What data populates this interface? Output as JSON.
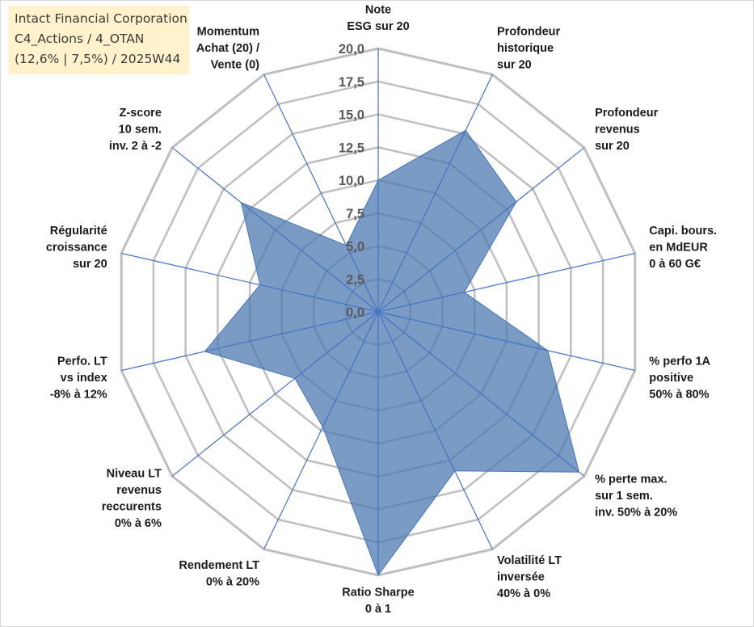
{
  "title_box": {
    "line1": "Intact Financial Corporation",
    "line2": "C4_Actions / 4_OTAN",
    "line3": "(12,6% | 7,5%) / 2025W44",
    "background": "#fff2cc"
  },
  "chart_data": {
    "type": "radar",
    "title": "Intact Financial Corporation",
    "range": [
      0,
      20
    ],
    "ticks": [
      "0,0",
      "2,5",
      "5,0",
      "7,5",
      "10,0",
      "12,5",
      "15,0",
      "17,5",
      "20,0"
    ],
    "tick_values": [
      0,
      2.5,
      5,
      7.5,
      10,
      12.5,
      15,
      17.5,
      20
    ],
    "axes": [
      [
        "Note",
        "ESG sur 20"
      ],
      [
        "Profondeur",
        "historique",
        "sur 20"
      ],
      [
        "Profondeur",
        "revenus",
        "sur 20"
      ],
      [
        "Capi. bours.",
        "en MdEUR",
        "0 à 60 G€"
      ],
      [
        "% perfo 1A",
        "positive",
        "50% à 80%"
      ],
      [
        "% perte max.",
        "sur 1 sem.",
        "inv. 50% à 20%"
      ],
      [
        "Volatilité LT",
        "inversée",
        "40% à 0%"
      ],
      [
        "Ratio Sharpe",
        "0 à 1"
      ],
      [
        "Rendement LT",
        "0% à 20%"
      ],
      [
        "Niveau LT",
        "revenus",
        "reccurents",
        "0% à 6%"
      ],
      [
        "Perfo. LT",
        "vs index",
        "-8% à 12%"
      ],
      [
        "Régularité",
        "croissance",
        "sur 20"
      ],
      [
        "Z-score",
        "10 sem.",
        "inv. 2 à -2"
      ],
      [
        "Momentum",
        "Achat (20) /",
        "Vente (0)"
      ]
    ],
    "series": [
      {
        "name": "Intact Financial Corporation",
        "values": [
          10,
          15.3,
          13.4,
          6.7,
          13.2,
          19.5,
          13.4,
          20,
          9.7,
          8.1,
          13.5,
          9.2,
          13.3,
          5.6
        ]
      }
    ],
    "colors": {
      "fill": "#4e79b0",
      "fill_opacity": "0.75",
      "series_stroke": "#4472c4",
      "grid": "#bfbfbf",
      "axis": "#4472c4"
    }
  }
}
